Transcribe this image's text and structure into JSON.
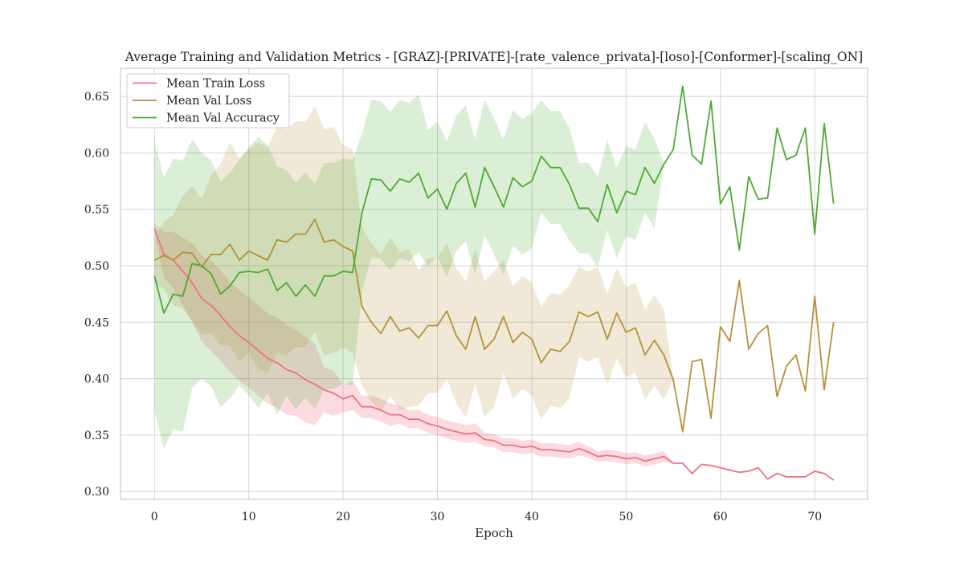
{
  "chart_data": {
    "type": "line",
    "title": "Average Training and Validation Metrics - [GRAZ]-[PRIVATE]-[rate_valence_privata]-[loso]-[Conformer]-[scaling_ON]",
    "xlabel": "Epoch",
    "ylabel": "",
    "xlim": [
      -3.6,
      75.6
    ],
    "ylim": [
      0.293,
      0.675
    ],
    "xticks": [
      0,
      10,
      20,
      30,
      40,
      50,
      60,
      70
    ],
    "yticks": [
      0.3,
      0.35,
      0.4,
      0.45,
      0.5,
      0.55,
      0.6,
      0.65
    ],
    "ytick_labels": [
      "0.30",
      "0.35",
      "0.40",
      "0.45",
      "0.50",
      "0.55",
      "0.60",
      "0.65"
    ],
    "grid": true,
    "legend_position": "top-left",
    "x": [
      0,
      1,
      2,
      3,
      4,
      5,
      6,
      7,
      8,
      9,
      10,
      11,
      12,
      13,
      14,
      15,
      16,
      17,
      18,
      19,
      20,
      21,
      22,
      23,
      24,
      25,
      26,
      27,
      28,
      29,
      30,
      31,
      32,
      33,
      34,
      35,
      36,
      37,
      38,
      39,
      40,
      41,
      42,
      43,
      44,
      45,
      46,
      47,
      48,
      49,
      50,
      51,
      52,
      53,
      54,
      55,
      56,
      57,
      58,
      59,
      60,
      61,
      62,
      63,
      64,
      65,
      66,
      67,
      68,
      69,
      70,
      71,
      72
    ],
    "series": [
      {
        "name": "Mean Train Loss",
        "color": "#f07183",
        "band_opacity": 0.25,
        "values": [
          0.533,
          0.51,
          0.505,
          0.495,
          0.485,
          0.471,
          0.465,
          0.456,
          0.446,
          0.438,
          0.432,
          0.425,
          0.418,
          0.414,
          0.408,
          0.405,
          0.399,
          0.395,
          0.39,
          0.387,
          0.382,
          0.385,
          0.375,
          0.375,
          0.372,
          0.368,
          0.368,
          0.364,
          0.364,
          0.36,
          0.358,
          0.355,
          0.353,
          0.351,
          0.352,
          0.346,
          0.345,
          0.341,
          0.341,
          0.339,
          0.34,
          0.337,
          0.337,
          0.336,
          0.335,
          0.338,
          0.335,
          0.331,
          0.332,
          0.331,
          0.329,
          0.33,
          0.327,
          0.329,
          0.331,
          0.325,
          0.325,
          0.316,
          0.324,
          0.323,
          0.321,
          0.319,
          0.317,
          0.318,
          0.321,
          0.311,
          0.316,
          0.313,
          0.313,
          0.313,
          0.318,
          0.316,
          0.31
        ],
        "band": [
          0.005,
          0.02,
          0.025,
          0.03,
          0.035,
          0.038,
          0.04,
          0.04,
          0.04,
          0.04,
          0.04,
          0.04,
          0.04,
          0.04,
          0.04,
          0.038,
          0.038,
          0.036,
          0.02,
          0.02,
          0.012,
          0.013,
          0.01,
          0.01,
          0.01,
          0.01,
          0.008,
          0.008,
          0.008,
          0.008,
          0.008,
          0.008,
          0.008,
          0.008,
          0.008,
          0.006,
          0.006,
          0.006,
          0.006,
          0.006,
          0.006,
          0.006,
          0.006,
          0.006,
          0.006,
          0.006,
          0.005,
          0.005,
          0.005,
          0.005,
          0.005,
          0.005,
          0.005,
          0.005,
          0.005,
          0,
          0,
          0,
          0,
          0,
          0,
          0,
          0,
          0,
          0,
          0,
          0,
          0,
          0,
          0,
          0,
          0,
          0
        ]
      },
      {
        "name": "Mean Val Loss",
        "color": "#b5913a",
        "band_opacity": 0.2,
        "values": [
          0.505,
          0.509,
          0.505,
          0.512,
          0.511,
          0.499,
          0.51,
          0.51,
          0.519,
          0.505,
          0.513,
          0.509,
          0.505,
          0.523,
          0.521,
          0.528,
          0.528,
          0.541,
          0.521,
          0.523,
          0.517,
          0.513,
          0.464,
          0.45,
          0.44,
          0.455,
          0.442,
          0.445,
          0.436,
          0.447,
          0.447,
          0.46,
          0.438,
          0.426,
          0.455,
          0.426,
          0.435,
          0.455,
          0.432,
          0.441,
          0.435,
          0.414,
          0.426,
          0.424,
          0.433,
          0.459,
          0.455,
          0.459,
          0.435,
          0.458,
          0.441,
          0.445,
          0.421,
          0.434,
          0.421,
          0.399,
          0.353,
          0.415,
          0.417,
          0.365,
          0.446,
          0.433,
          0.487,
          0.426,
          0.44,
          0.447,
          0.384,
          0.411,
          0.421,
          0.389,
          0.473,
          0.39,
          0.45
        ],
        "band": [
          0.02,
          0.03,
          0.04,
          0.05,
          0.06,
          0.06,
          0.07,
          0.08,
          0.09,
          0.09,
          0.09,
          0.1,
          0.1,
          0.1,
          0.1,
          0.1,
          0.1,
          0.1,
          0.1,
          0.1,
          0.09,
          0.09,
          0.07,
          0.07,
          0.07,
          0.07,
          0.07,
          0.07,
          0.06,
          0.06,
          0.06,
          0.06,
          0.06,
          0.06,
          0.06,
          0.06,
          0.06,
          0.05,
          0.05,
          0.05,
          0.05,
          0.05,
          0.05,
          0.05,
          0.05,
          0.04,
          0.04,
          0.04,
          0.04,
          0.04,
          0.04,
          0.04,
          0.04,
          0.04,
          0.04,
          0,
          0,
          0,
          0,
          0,
          0,
          0,
          0,
          0,
          0,
          0,
          0,
          0,
          0,
          0,
          0,
          0,
          0
        ]
      },
      {
        "name": "Mean Val Accuracy",
        "color": "#4daa33",
        "band_opacity": 0.2,
        "values": [
          0.491,
          0.458,
          0.475,
          0.473,
          0.502,
          0.5,
          0.493,
          0.475,
          0.482,
          0.494,
          0.495,
          0.494,
          0.497,
          0.478,
          0.485,
          0.473,
          0.483,
          0.473,
          0.491,
          0.491,
          0.495,
          0.494,
          0.547,
          0.577,
          0.576,
          0.566,
          0.577,
          0.574,
          0.582,
          0.56,
          0.568,
          0.55,
          0.573,
          0.582,
          0.552,
          0.587,
          0.57,
          0.552,
          0.578,
          0.57,
          0.575,
          0.597,
          0.587,
          0.587,
          0.572,
          0.551,
          0.551,
          0.539,
          0.572,
          0.547,
          0.566,
          0.563,
          0.587,
          0.573,
          0.59,
          0.603,
          0.659,
          0.598,
          0.59,
          0.646,
          0.555,
          0.57,
          0.514,
          0.579,
          0.559,
          0.56,
          0.622,
          0.594,
          0.598,
          0.622,
          0.528,
          0.626,
          0.555
        ],
        "band": [
          0.12,
          0.12,
          0.12,
          0.12,
          0.11,
          0.1,
          0.1,
          0.1,
          0.1,
          0.1,
          0.11,
          0.12,
          0.11,
          0.11,
          0.1,
          0.1,
          0.1,
          0.1,
          0.1,
          0.1,
          0.1,
          0.1,
          0.07,
          0.07,
          0.07,
          0.07,
          0.07,
          0.07,
          0.07,
          0.06,
          0.06,
          0.06,
          0.06,
          0.06,
          0.06,
          0.06,
          0.06,
          0.06,
          0.06,
          0.06,
          0.06,
          0.05,
          0.05,
          0.05,
          0.05,
          0.04,
          0.04,
          0.04,
          0.04,
          0.04,
          0.04,
          0.04,
          0.04,
          0.04,
          0,
          0,
          0,
          0,
          0,
          0,
          0,
          0,
          0,
          0,
          0,
          0,
          0,
          0,
          0,
          0,
          0,
          0,
          0
        ]
      }
    ]
  }
}
